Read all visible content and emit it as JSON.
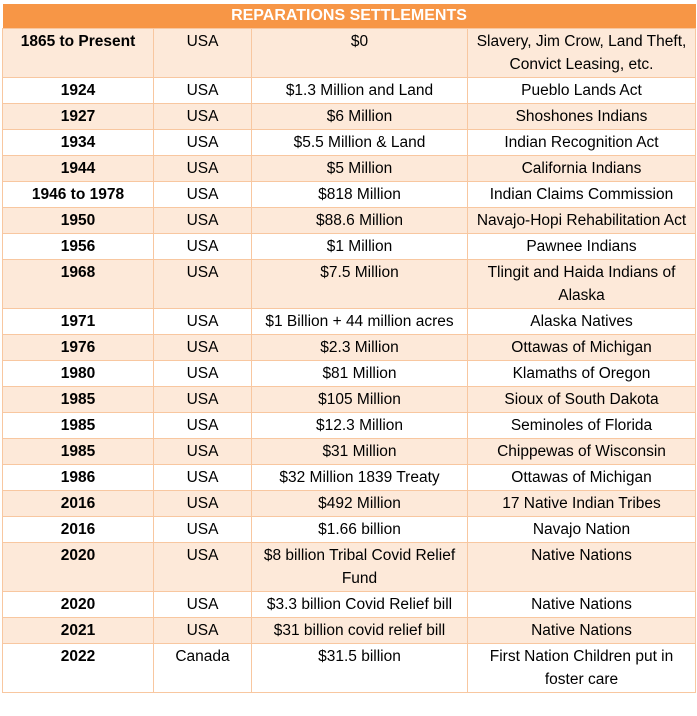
{
  "title": "REPARATIONS SETTLEMENTS",
  "rows": [
    {
      "year": "1865 to Present",
      "country": "USA",
      "amount": "$0",
      "recipient": "Slavery, Jim Crow, Land Theft, Convict Leasing, etc."
    },
    {
      "year": "1924",
      "country": "USA",
      "amount": "$1.3 Million and Land",
      "recipient": "Pueblo Lands Act"
    },
    {
      "year": "1927",
      "country": "USA",
      "amount": "$6 Million",
      "recipient": "Shoshones Indians"
    },
    {
      "year": "1934",
      "country": "USA",
      "amount": "$5.5 Million & Land",
      "recipient": "Indian Recognition Act"
    },
    {
      "year": "1944",
      "country": "USA",
      "amount": "$5 Million",
      "recipient": "California Indians"
    },
    {
      "year": "1946 to 1978",
      "country": "USA",
      "amount": "$818 Million",
      "recipient": "Indian Claims Commission"
    },
    {
      "year": "1950",
      "country": "USA",
      "amount": "$88.6 Million",
      "recipient": "Navajo-Hopi Rehabilitation Act"
    },
    {
      "year": "1956",
      "country": "USA",
      "amount": "$1 Million",
      "recipient": "Pawnee Indians"
    },
    {
      "year": "1968",
      "country": "USA",
      "amount": "$7.5 Million",
      "recipient": "Tlingit and Haida Indians of Alaska"
    },
    {
      "year": "1971",
      "country": "USA",
      "amount": "$1 Billion + 44 million acres",
      "recipient": "Alaska Natives"
    },
    {
      "year": "1976",
      "country": "USA",
      "amount": "$2.3 Million",
      "recipient": "Ottawas of Michigan"
    },
    {
      "year": "1980",
      "country": "USA",
      "amount": "$81 Million",
      "recipient": "Klamaths of Oregon"
    },
    {
      "year": "1985",
      "country": "USA",
      "amount": "$105 Million",
      "recipient": "Sioux of South Dakota"
    },
    {
      "year": "1985",
      "country": "USA",
      "amount": "$12.3 Million",
      "recipient": "Seminoles of Florida"
    },
    {
      "year": "1985",
      "country": "USA",
      "amount": "$31 Million",
      "recipient": "Chippewas of Wisconsin"
    },
    {
      "year": "1986",
      "country": "USA",
      "amount": "$32 Million   1839 Treaty",
      "recipient": "Ottawas of Michigan"
    },
    {
      "year": "2016",
      "country": "USA",
      "amount": "$492 Million",
      "recipient": "17 Native Indian Tribes"
    },
    {
      "year": "2016",
      "country": "USA",
      "amount": "$1.66 billion",
      "recipient": "Navajo Nation"
    },
    {
      "year": "2020",
      "country": "USA",
      "amount": "$8 billion Tribal Covid Relief Fund",
      "recipient": "Native Nations"
    },
    {
      "year": "2020",
      "country": "USA",
      "amount": "$3.3 billion Covid Relief bill",
      "recipient": "Native Nations"
    },
    {
      "year": "2021",
      "country": "USA",
      "amount": "$31 billion covid relief bill",
      "recipient": "Native Nations"
    },
    {
      "year": "2022",
      "country": "Canada",
      "amount": "$31.5 billion",
      "recipient": "First Nation Children put in foster care"
    }
  ],
  "colors": {
    "header_bg": "#f79646",
    "shade_bg": "#fde9d9",
    "border": "#f8c7a0"
  }
}
